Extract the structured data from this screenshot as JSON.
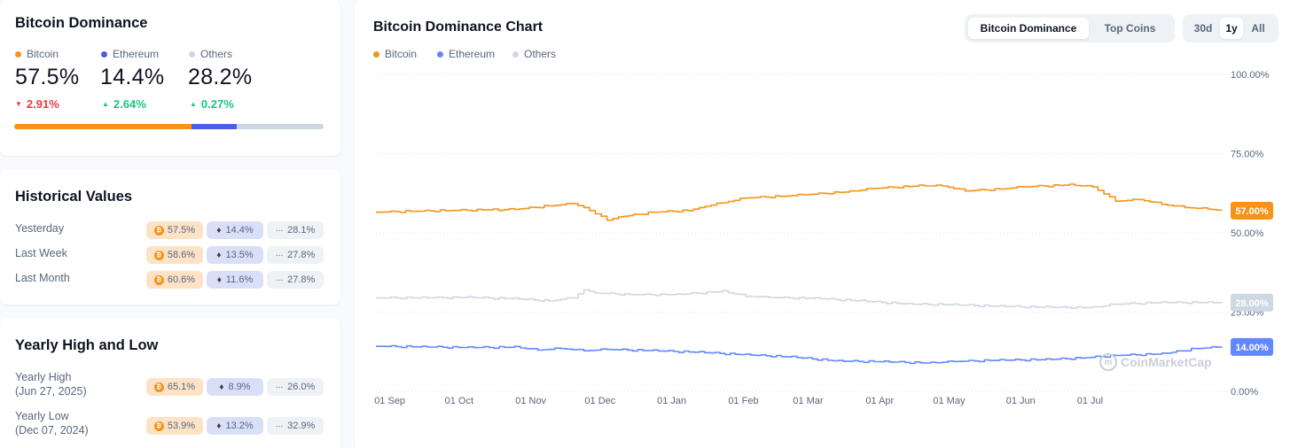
{
  "dominance": {
    "title": "Bitcoin Dominance",
    "coins": [
      {
        "name": "Bitcoin",
        "pct": "57.5%",
        "change": "2.91%",
        "direction": "down",
        "color": "#f7931a",
        "share": 57.5
      },
      {
        "name": "Ethereum",
        "pct": "14.4%",
        "change": "2.64%",
        "direction": "up",
        "color": "#4a5fe6",
        "share": 14.4
      },
      {
        "name": "Others",
        "pct": "28.2%",
        "change": "0.27%",
        "direction": "up",
        "color": "#cfd6e4",
        "share": 28.2
      }
    ]
  },
  "historical": {
    "title": "Historical Values",
    "rows": [
      {
        "label": "Yesterday",
        "btc": "57.5%",
        "eth": "14.4%",
        "others": "28.1%"
      },
      {
        "label": "Last Week",
        "btc": "58.6%",
        "eth": "13.5%",
        "others": "27.8%"
      },
      {
        "label": "Last Month",
        "btc": "60.6%",
        "eth": "11.6%",
        "others": "27.8%"
      }
    ]
  },
  "yearly": {
    "title": "Yearly High and Low",
    "rows": [
      {
        "label": "Yearly High",
        "date": "(Jun 27, 2025)",
        "btc": "65.1%",
        "eth": "8.9%",
        "others": "26.0%"
      },
      {
        "label": "Yearly Low",
        "date": "(Dec 07, 2024)",
        "btc": "53.9%",
        "eth": "13.2%",
        "others": "32.9%"
      }
    ]
  },
  "chart_panel": {
    "title": "Bitcoin Dominance Chart",
    "view_tabs": [
      "Bitcoin Dominance",
      "Top Coins"
    ],
    "active_view": "Bitcoin Dominance",
    "range_tabs": [
      "30d",
      "1y",
      "All"
    ],
    "active_range": "1y",
    "watermark": "CoinMarketCap",
    "icons": {
      "coin": "bitcoin-icon",
      "eth": "ethereum-icon",
      "others": "ellipsis-icon",
      "watermark": "cmc-logo-icon",
      "change_up": "triangle-up-icon",
      "change_down": "triangle-down-icon"
    }
  },
  "chart_data": {
    "type": "line",
    "title": "Bitcoin Dominance Chart",
    "ylim": [
      0,
      100
    ],
    "y_ticks": [
      "100.00%",
      "75.00%",
      "50.00%",
      "25.00%",
      "0.00%"
    ],
    "y_tick_values": [
      100,
      75,
      50,
      25,
      0
    ],
    "x_ticks": [
      "01 Sep",
      "01 Oct",
      "01 Nov",
      "01 Dec",
      "01 Jan",
      "01 Feb",
      "01 Mar",
      "01 Apr",
      "01 May",
      "01 Jun",
      "01 Jul"
    ],
    "x_tick_days": [
      6,
      36,
      67,
      97,
      128,
      159,
      187,
      218,
      248,
      279,
      309
    ],
    "x_range_days": [
      0,
      366
    ],
    "grid": true,
    "legend_position": "top-left",
    "series": [
      {
        "name": "Bitcoin",
        "color": "#f7931a",
        "last_label": "57.00%",
        "days": [
          0,
          15,
          30,
          60,
          75,
          85,
          90,
          100,
          105,
          120,
          135,
          140,
          150,
          160,
          175,
          185,
          205,
          215,
          235,
          245,
          255,
          270,
          280,
          300,
          310,
          320,
          330,
          340,
          350,
          360,
          366
        ],
        "values": [
          56.5,
          56.8,
          57.0,
          57.4,
          58.5,
          59.2,
          58.0,
          54.0,
          55.0,
          56.5,
          57.0,
          58.0,
          59.5,
          61.0,
          61.5,
          62.0,
          63.0,
          64.0,
          64.8,
          64.8,
          63.2,
          63.8,
          64.5,
          65.1,
          64.5,
          60.0,
          60.5,
          59.0,
          58.0,
          57.5,
          57.0
        ]
      },
      {
        "name": "Ethereum",
        "color": "#6188ff",
        "last_label": "14.00%",
        "days": [
          0,
          20,
          40,
          60,
          70,
          80,
          90,
          100,
          120,
          140,
          160,
          180,
          200,
          220,
          240,
          250,
          270,
          290,
          305,
          320,
          340,
          355,
          366
        ],
        "values": [
          14.2,
          14.0,
          13.8,
          13.9,
          13.0,
          13.5,
          12.8,
          13.2,
          12.8,
          12.3,
          11.5,
          10.8,
          9.5,
          9.3,
          8.9,
          9.4,
          9.8,
          10.0,
          10.5,
          11.3,
          11.8,
          13.5,
          14.0
        ]
      },
      {
        "name": "Others",
        "color": "#cfd6e4",
        "last_label": "28.00%",
        "days": [
          0,
          20,
          40,
          60,
          75,
          85,
          90,
          95,
          110,
          130,
          150,
          160,
          170,
          190,
          210,
          230,
          250,
          270,
          290,
          310,
          320,
          340,
          360,
          366
        ],
        "values": [
          29.5,
          29.5,
          29.6,
          29.2,
          28.5,
          29.5,
          32.0,
          31.0,
          30.5,
          30.5,
          31.5,
          30.0,
          29.6,
          29.3,
          28.5,
          27.5,
          27.3,
          26.8,
          26.5,
          26.4,
          27.5,
          28.0,
          28.0,
          28.0
        ]
      }
    ]
  }
}
